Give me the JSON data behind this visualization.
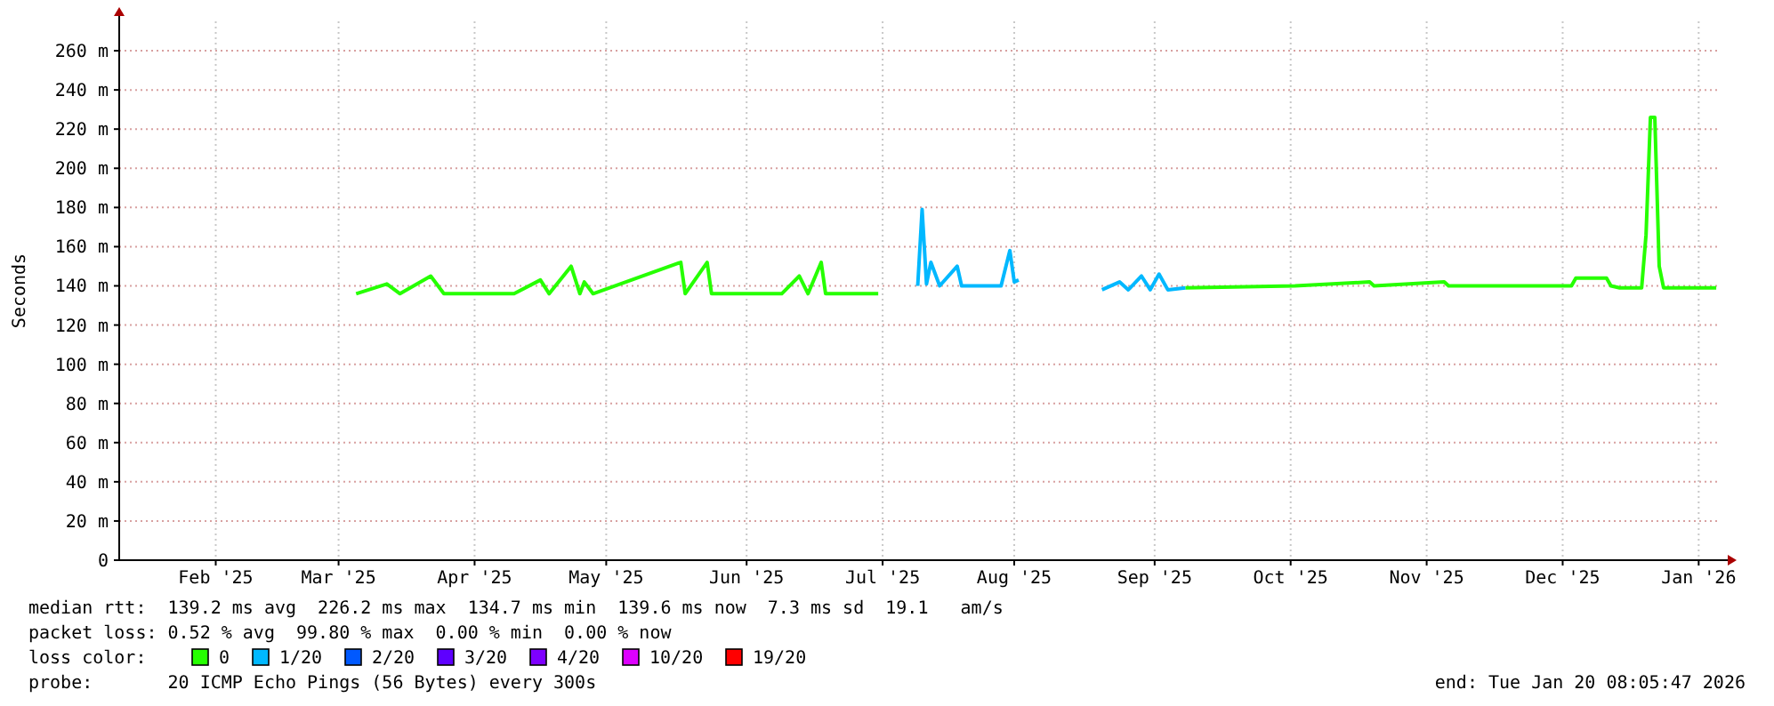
{
  "chart_data": {
    "type": "line",
    "ylabel": "Seconds",
    "legend_title": "loss color:",
    "legend": "bottom",
    "grid": true,
    "xlim": [
      "2025-01-20",
      "2026-01-20"
    ],
    "xticks": [
      {
        "value": "2025-02-11",
        "label": "Feb '25"
      },
      {
        "value": "2025-03-11",
        "label": "Mar '25"
      },
      {
        "value": "2025-04-11",
        "label": "Apr '25"
      },
      {
        "value": "2025-05-11",
        "label": "May '25"
      },
      {
        "value": "2025-06-12",
        "label": "Jun '25"
      },
      {
        "value": "2025-07-13",
        "label": "Jul '25"
      },
      {
        "value": "2025-08-12",
        "label": "Aug '25"
      },
      {
        "value": "2025-09-13",
        "label": "Sep '25"
      },
      {
        "value": "2025-10-14",
        "label": "Oct '25"
      },
      {
        "value": "2025-11-14",
        "label": "Nov '25"
      },
      {
        "value": "2025-12-15",
        "label": "Dec '25"
      },
      {
        "value": "2026-01-15",
        "label": "Jan '26"
      }
    ],
    "ylim": [
      0,
      275
    ],
    "yticks": [
      0,
      {
        "value": 20,
        "label": "20 m"
      },
      {
        "value": 40,
        "label": "40 m"
      },
      {
        "value": 60,
        "label": "60 m"
      },
      {
        "value": 80,
        "label": "80 m"
      },
      {
        "value": 100,
        "label": "100 m"
      },
      {
        "value": 120,
        "label": "120 m"
      },
      {
        "value": 140,
        "label": "140 m"
      },
      {
        "value": 160,
        "label": "160 m"
      },
      {
        "value": 180,
        "label": "180 m"
      },
      {
        "value": 200,
        "label": "200 m"
      },
      {
        "value": 220,
        "label": "220 m"
      },
      {
        "value": 240,
        "label": "240 m"
      },
      {
        "value": 260,
        "label": "260 m"
      }
    ],
    "series": [
      {
        "name": "0",
        "color": "#26ff00",
        "x": [
          "2025-03-15",
          "2025-03-22",
          "2025-03-25",
          "2025-04-01",
          "2025-04-04",
          "2025-04-20",
          "2025-04-26",
          "2025-04-28",
          "2025-05-03",
          "2025-05-05",
          "2025-05-06",
          "2025-05-08",
          "2025-05-28",
          "2025-05-29",
          "2025-06-03",
          "2025-06-04",
          "2025-06-20",
          "2025-06-24",
          "2025-06-26",
          "2025-06-29",
          "2025-06-30",
          "2025-07-12",
          "2025-07-16",
          "2025-09-20",
          "2025-10-15",
          "2025-11-01",
          "2025-11-02",
          "2025-11-18",
          "2025-11-19",
          "2025-12-17",
          "2025-12-18",
          "2025-12-25",
          "2025-12-26",
          "2025-12-28",
          "2026-01-02",
          "2026-01-03",
          "2026-01-04",
          "2026-01-05",
          "2026-01-06",
          "2026-01-07",
          "2026-01-19"
        ],
        "values": [
          136,
          141,
          136,
          145,
          136,
          136,
          143,
          136,
          150,
          136,
          142,
          136,
          152,
          136,
          152,
          136,
          136,
          145,
          136,
          152,
          136,
          136,
          null,
          139,
          140,
          142,
          140,
          142,
          140,
          140,
          144,
          144,
          140,
          139,
          139,
          166,
          226,
          226,
          150,
          139,
          139
        ]
      },
      {
        "name": "1/20",
        "color": "#00b8ff",
        "x": [
          "2025-07-21",
          "2025-07-22",
          "2025-07-23",
          "2025-07-24",
          "2025-07-26",
          "2025-07-30",
          "2025-07-31",
          "2025-08-09",
          "2025-08-11",
          "2025-08-12",
          "2025-08-13",
          "2025-08-20",
          "2025-09-01",
          "2025-09-05",
          "2025-09-07",
          "2025-09-10",
          "2025-09-12",
          "2025-09-14",
          "2025-09-16",
          "2025-09-20"
        ],
        "values": [
          140,
          179,
          141,
          152,
          140,
          150,
          140,
          140,
          158,
          142,
          143,
          null,
          138,
          142,
          138,
          145,
          138,
          146,
          138,
          139
        ]
      },
      {
        "name": "2/20",
        "color": "#0059ff"
      },
      {
        "name": "3/20",
        "color": "#5e00ff"
      },
      {
        "name": "4/20",
        "color": "#7e00ff"
      },
      {
        "name": "10/20",
        "color": "#dd00ff"
      },
      {
        "name": "19/20",
        "color": "#ff0000"
      }
    ],
    "annotations": [
      "median rtt:  139.2 ms avg  226.2 ms max  134.7 ms min  139.6 ms now  7.3 ms sd  19.1   am/s",
      "packet loss: 0.52 % avg  99.80 % max  0.00 % min  0.00 % now",
      "probe:       20 ICMP Echo Pings (56 Bytes) every 300s",
      "end: Tue Jan 20 08:05:47 2026"
    ]
  }
}
